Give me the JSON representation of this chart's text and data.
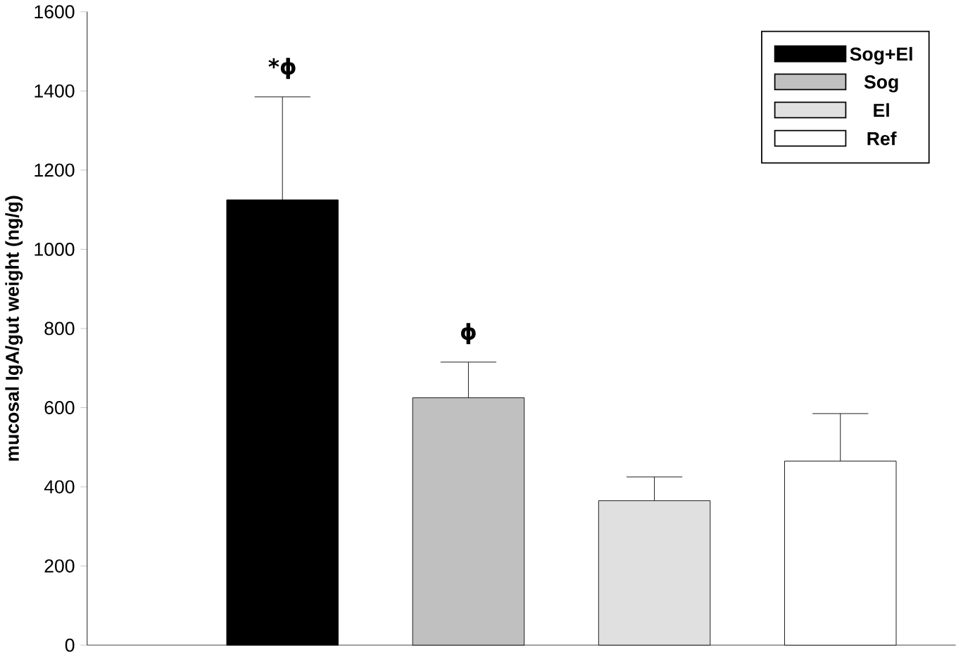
{
  "chart_data": {
    "type": "bar",
    "ylabel": "mucosal IgA/gut weight (ng/g)",
    "categories": [
      null,
      null,
      null,
      null
    ],
    "series": [
      {
        "name": "Sog+El",
        "color": "#000000",
        "values": [
          1125,
          null,
          null,
          null
        ],
        "errors": [
          [
            1125,
            1385
          ],
          null,
          null,
          null
        ]
      },
      {
        "name": "Sog",
        "color": "#c0c0c0",
        "values": [
          null,
          625,
          null,
          null
        ],
        "errors": [
          null,
          [
            625,
            715
          ],
          null,
          null
        ]
      },
      {
        "name": "El",
        "color": "#e0e0e0",
        "values": [
          null,
          null,
          365,
          null
        ],
        "errors": [
          null,
          null,
          [
            365,
            425
          ],
          null
        ]
      },
      {
        "name": "Ref",
        "color": "#ffffff",
        "values": [
          null,
          null,
          null,
          465
        ],
        "errors": [
          null,
          null,
          null,
          [
            465,
            585
          ]
        ]
      }
    ],
    "ylim": [
      0,
      1600
    ],
    "yticks": [
      0,
      200,
      400,
      600,
      800,
      1000,
      1200,
      1400,
      1600
    ],
    "annotations": [
      "*ϕ",
      "ϕ"
    ],
    "legend": "top right",
    "grid": false
  }
}
